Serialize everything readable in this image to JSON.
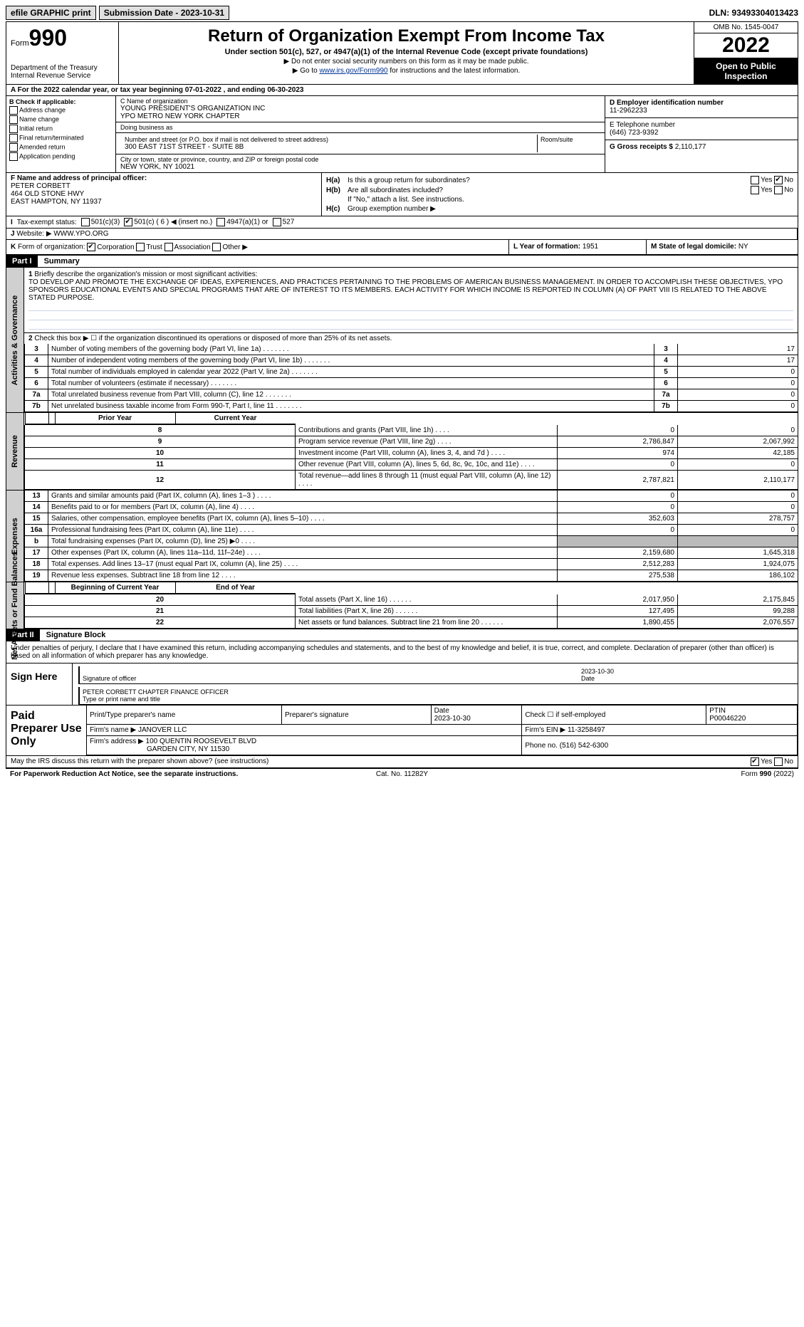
{
  "topbar": {
    "efile": "efile GRAPHIC print",
    "submission": "Submission Date - 2023-10-31",
    "dln": "DLN: 93493304013423"
  },
  "header": {
    "form_word": "Form",
    "form_num": "990",
    "dept": "Department of the Treasury",
    "irs": "Internal Revenue Service",
    "title": "Return of Organization Exempt From Income Tax",
    "sub": "Under section 501(c), 527, or 4947(a)(1) of the Internal Revenue Code (except private foundations)",
    "note1": "▶ Do not enter social security numbers on this form as it may be made public.",
    "note2_pre": "▶ Go to ",
    "note2_link": "www.irs.gov/Form990",
    "note2_post": " for instructions and the latest information.",
    "omb": "OMB No. 1545-0047",
    "year": "2022",
    "open": "Open to Public Inspection"
  },
  "rowA": "A For the 2022 calendar year, or tax year beginning 07-01-2022     , and ending 06-30-2023",
  "colB": {
    "hdr": "B Check if applicable:",
    "items": [
      "Address change",
      "Name change",
      "Initial return",
      "Final return/terminated",
      "Amended return",
      "Application pending"
    ]
  },
  "colC": {
    "name_lbl": "C Name of organization",
    "name1": "YOUNG PRESIDENT'S ORGANIZATION INC",
    "name2": "YPO METRO NEW YORK CHAPTER",
    "dba_lbl": "Doing business as",
    "dba": "",
    "street_lbl": "Number and street (or P.O. box if mail is not delivered to street address)",
    "street": "300 EAST 71ST STREET - SUITE 8B",
    "room_lbl": "Room/suite",
    "city_lbl": "City or town, state or province, country, and ZIP or foreign postal code",
    "city": "NEW YORK, NY  10021"
  },
  "colD": {
    "d_lbl": "D Employer identification number",
    "d_val": "11-2962233",
    "e_lbl": "E Telephone number",
    "e_val": "(646) 723-9392",
    "g_lbl": "G Gross receipts $",
    "g_val": "2,110,177"
  },
  "colF": {
    "lbl": "F Name and address of principal officer:",
    "name": "PETER CORBETT",
    "addr1": "464 OLD STONE HWY",
    "addr2": "EAST HAMPTON, NY  11937"
  },
  "colH": {
    "ha_lbl": "H(a)",
    "ha_txt": "Is this a group return for subordinates?",
    "hb_lbl": "H(b)",
    "hb_txt": "Are all subordinates included?",
    "hb_note": "If \"No,\" attach a list. See instructions.",
    "hc_lbl": "H(c)",
    "hc_txt": "Group exemption number ▶",
    "yes": "Yes",
    "no": "No"
  },
  "rowI": {
    "lbl": "I",
    "txt": "Tax-exempt status:",
    "opts": [
      "501(c)(3)",
      "501(c) ( 6 ) ◀ (insert no.)",
      "4947(a)(1) or",
      "527"
    ]
  },
  "rowJ": {
    "lbl": "J",
    "txt": "Website: ▶",
    "val": "WWW.YPO.ORG"
  },
  "rowK": {
    "lbl": "K",
    "txt": "Form of organization:",
    "opts": [
      "Corporation",
      "Trust",
      "Association",
      "Other ▶"
    ]
  },
  "rowL": {
    "lbl": "L Year of formation:",
    "val": "1951"
  },
  "rowM": {
    "lbl": "M State of legal domicile:",
    "val": "NY"
  },
  "partI": {
    "hdr": "Part I",
    "title": "Summary",
    "line1_lbl": "1",
    "line1_txt": "Briefly describe the organization's mission or most significant activities:",
    "mission": "TO DEVELOP AND PROMOTE THE EXCHANGE OF IDEAS, EXPERIENCES, AND PRACTICES PERTAINING TO THE PROBLEMS OF AMERICAN BUSINESS MANAGEMENT. IN ORDER TO ACCOMPLISH THESE OBJECTIVES, YPO SPONSORS EDUCATIONAL EVENTS AND SPECIAL PROGRAMS THAT ARE OF INTEREST TO ITS MEMBERS. EACH ACTIVITY FOR WHICH INCOME IS REPORTED IN COLUMN (A) OF PART VIII IS RELATED TO THE ABOVE STATED PURPOSE.",
    "line2_lbl": "2",
    "line2_txt": "Check this box ▶ ☐ if the organization discontinued its operations or disposed of more than 25% of its net assets."
  },
  "vtabs": {
    "ag": "Activities & Governance",
    "rev": "Revenue",
    "exp": "Expenses",
    "net": "Net Assets or Fund Balances"
  },
  "govLines": [
    {
      "n": "3",
      "d": "Number of voting members of the governing body (Part VI, line 1a)",
      "r": "3",
      "v": "17"
    },
    {
      "n": "4",
      "d": "Number of independent voting members of the governing body (Part VI, line 1b)",
      "r": "4",
      "v": "17"
    },
    {
      "n": "5",
      "d": "Total number of individuals employed in calendar year 2022 (Part V, line 2a)",
      "r": "5",
      "v": "0"
    },
    {
      "n": "6",
      "d": "Total number of volunteers (estimate if necessary)",
      "r": "6",
      "v": "0"
    },
    {
      "n": "7a",
      "d": "Total unrelated business revenue from Part VIII, column (C), line 12",
      "r": "7a",
      "v": "0"
    },
    {
      "n": "7b",
      "d": "Net unrelated business taxable income from Form 990-T, Part I, line 11",
      "r": "7b",
      "v": "0"
    }
  ],
  "colHdr": {
    "prior": "Prior Year",
    "current": "Current Year",
    "beg": "Beginning of Current Year",
    "end": "End of Year"
  },
  "revLines": [
    {
      "n": "8",
      "d": "Contributions and grants (Part VIII, line 1h)",
      "p": "0",
      "c": "0"
    },
    {
      "n": "9",
      "d": "Program service revenue (Part VIII, line 2g)",
      "p": "2,786,847",
      "c": "2,067,992"
    },
    {
      "n": "10",
      "d": "Investment income (Part VIII, column (A), lines 3, 4, and 7d )",
      "p": "974",
      "c": "42,185"
    },
    {
      "n": "11",
      "d": "Other revenue (Part VIII, column (A), lines 5, 6d, 8c, 9c, 10c, and 11e)",
      "p": "0",
      "c": "0"
    },
    {
      "n": "12",
      "d": "Total revenue—add lines 8 through 11 (must equal Part VIII, column (A), line 12)",
      "p": "2,787,821",
      "c": "2,110,177"
    }
  ],
  "expLines": [
    {
      "n": "13",
      "d": "Grants and similar amounts paid (Part IX, column (A), lines 1–3 )",
      "p": "0",
      "c": "0"
    },
    {
      "n": "14",
      "d": "Benefits paid to or for members (Part IX, column (A), line 4)",
      "p": "0",
      "c": "0"
    },
    {
      "n": "15",
      "d": "Salaries, other compensation, employee benefits (Part IX, column (A), lines 5–10)",
      "p": "352,603",
      "c": "278,757"
    },
    {
      "n": "16a",
      "d": "Professional fundraising fees (Part IX, column (A), line 11e)",
      "p": "0",
      "c": "0"
    },
    {
      "n": "b",
      "d": "Total fundraising expenses (Part IX, column (D), line 25) ▶0",
      "p": "",
      "c": "",
      "shade": true
    },
    {
      "n": "17",
      "d": "Other expenses (Part IX, column (A), lines 11a–11d, 11f–24e)",
      "p": "2,159,680",
      "c": "1,645,318"
    },
    {
      "n": "18",
      "d": "Total expenses. Add lines 13–17 (must equal Part IX, column (A), line 25)",
      "p": "2,512,283",
      "c": "1,924,075"
    },
    {
      "n": "19",
      "d": "Revenue less expenses. Subtract line 18 from line 12",
      "p": "275,538",
      "c": "186,102"
    }
  ],
  "netLines": [
    {
      "n": "20",
      "d": "Total assets (Part X, line 16)",
      "p": "2,017,950",
      "c": "2,175,845"
    },
    {
      "n": "21",
      "d": "Total liabilities (Part X, line 26)",
      "p": "127,495",
      "c": "99,288"
    },
    {
      "n": "22",
      "d": "Net assets or fund balances. Subtract line 21 from line 20",
      "p": "1,890,455",
      "c": "2,076,557"
    }
  ],
  "partII": {
    "hdr": "Part II",
    "title": "Signature Block",
    "decl": "Under penalties of perjury, I declare that I have examined this return, including accompanying schedules and statements, and to the best of my knowledge and belief, it is true, correct, and complete. Declaration of preparer (other than officer) is based on all information of which preparer has any knowledge."
  },
  "sign": {
    "here": "Sign Here",
    "sig_lbl": "Signature of officer",
    "date_lbl": "Date",
    "date": "2023-10-30",
    "name": "PETER CORBETT  CHAPTER FINANCE OFFICER",
    "name_lbl": "Type or print name and title"
  },
  "paid": {
    "hdr": "Paid Preparer Use Only",
    "cols": [
      "Print/Type preparer's name",
      "Preparer's signature",
      "Date",
      "Check ☐ if self-employed",
      "PTIN"
    ],
    "date": "2023-10-30",
    "ptin": "P00046220",
    "firm_lbl": "Firm's name ▶",
    "firm": "JANOVER LLC",
    "ein_lbl": "Firm's EIN ▶",
    "ein": "11-3258497",
    "addr_lbl": "Firm's address ▶",
    "addr1": "100 QUENTIN ROOSEVELT BLVD",
    "addr2": "GARDEN CITY, NY  11530",
    "phone_lbl": "Phone no.",
    "phone": "(516) 542-6300"
  },
  "discuss": {
    "txt": "May the IRS discuss this return with the preparer shown above? (see instructions)",
    "yes": "Yes",
    "no": "No"
  },
  "footer": {
    "l": "For Paperwork Reduction Act Notice, see the separate instructions.",
    "m": "Cat. No. 11282Y",
    "r": "Form 990 (2022)"
  }
}
